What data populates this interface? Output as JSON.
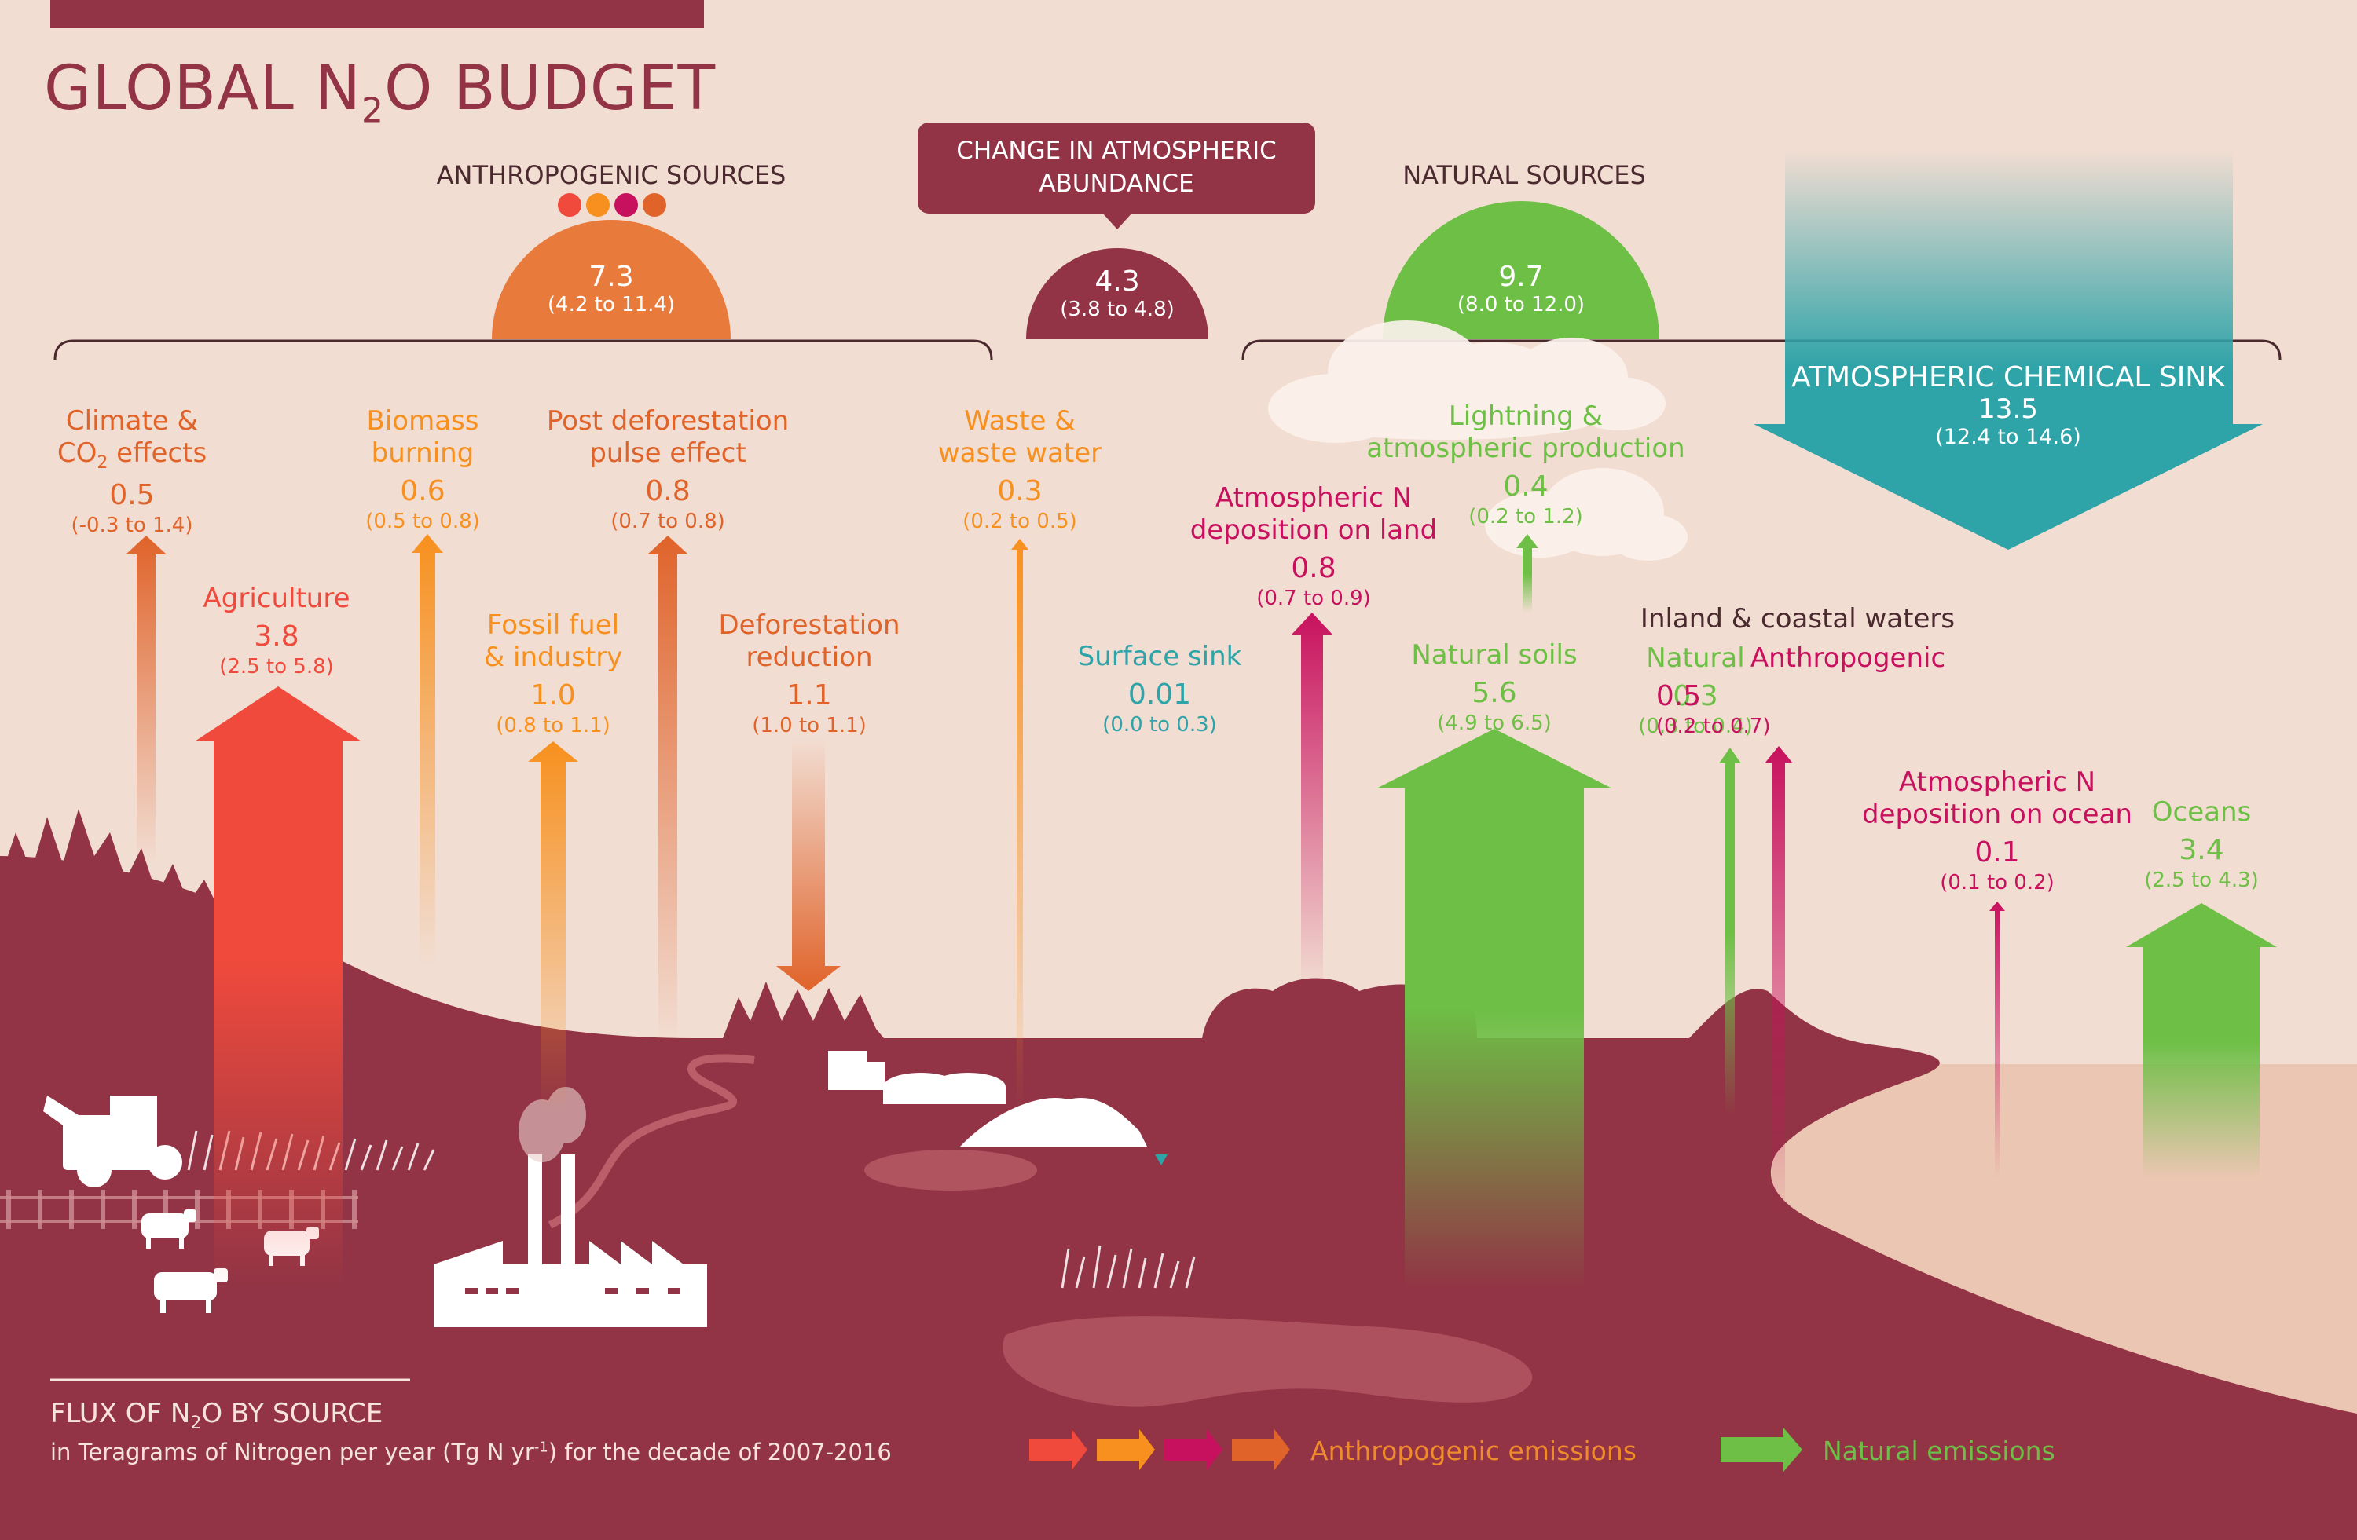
{
  "title": {
    "pre": "GLOBAL N",
    "sub": "2",
    "post": "O BUDGET"
  },
  "anthropogenic_header": "ANTHROPOGENIC SOURCES",
  "natural_header": "NATURAL SOURCES",
  "change_box": {
    "line1": "CHANGE IN ATMOSPHERIC",
    "line2": "ABUNDANCE"
  },
  "totals": {
    "anthropogenic": {
      "value": "7.3",
      "range": "(4.2 to 11.4)"
    },
    "change": {
      "value": "4.3",
      "range": "(3.8 to 4.8)"
    },
    "natural": {
      "value": "9.7",
      "range": "(8.0 to 12.0)"
    }
  },
  "sink": {
    "name": "ATMOSPHERIC CHEMICAL SINK",
    "value": "13.5",
    "range": "(12.4 to 14.6)"
  },
  "fluxes": {
    "climate": {
      "line1": "Climate &",
      "line2_pre": "CO",
      "line2_sub": "2",
      "line2_post": " effects",
      "value": "0.5",
      "range": "(-0.3 to 1.4)"
    },
    "agriculture": {
      "name": "Agriculture",
      "value": "3.8",
      "range": "(2.5 to 5.8)"
    },
    "biomass": {
      "line1": "Biomass",
      "line2": "burning",
      "value": "0.6",
      "range": "(0.5 to 0.8)"
    },
    "fossil": {
      "line1": "Fossil fuel",
      "line2": "& industry",
      "value": "1.0",
      "range": "(0.8 to 1.1)"
    },
    "post_deforestation": {
      "line1": "Post deforestation",
      "line2": "pulse effect",
      "value": "0.8",
      "range": "(0.7 to 0.8)"
    },
    "deforestation_reduction": {
      "line1": "Deforestation",
      "line2": "reduction",
      "value": "1.1",
      "range": "(1.0 to 1.1)"
    },
    "waste": {
      "line1": "Waste &",
      "line2": "waste water",
      "value": "0.3",
      "range": "(0.2 to 0.5)"
    },
    "surface_sink": {
      "name": "Surface sink",
      "value": "0.01",
      "range": "(0.0 to 0.3)"
    },
    "deposition_land": {
      "line1": "Atmospheric N",
      "line2": "deposition on land",
      "value": "0.8",
      "range": "(0.7 to 0.9)"
    },
    "lightning": {
      "line1": "Lightning &",
      "line2": "atmospheric production",
      "value": "0.4",
      "range": "(0.2 to 1.2)"
    },
    "natural_soils": {
      "name": "Natural soils",
      "value": "5.6",
      "range": "(4.9 to 6.5)"
    },
    "inland_header": "Inland & coastal waters",
    "inland_natural": {
      "name": "Natural",
      "value": "0.3",
      "range": "(0.3 to 0.4)"
    },
    "inland_anthro": {
      "name": "Anthropogenic",
      "value": "0.5",
      "range": "(0.2 to 0.7)"
    },
    "deposition_ocean": {
      "line1": "Atmospheric N",
      "line2": "deposition on ocean",
      "value": "0.1",
      "range": "(0.1 to 0.2)"
    },
    "oceans": {
      "name": "Oceans",
      "value": "3.4",
      "range": "(2.5 to 4.3)"
    }
  },
  "footer": {
    "title_pre": "FLUX OF N",
    "title_sub": "2",
    "title_post": "O BY SOURCE",
    "subtitle_pre": "in Teragrams of Nitrogen per year (Tg N yr",
    "subtitle_sup": "-1",
    "subtitle_post": ") for the decade of 2007-2016"
  },
  "legend": {
    "anthropogenic": "Anthropogenic emissions",
    "natural": "Natural emissions"
  },
  "colors": {
    "background": "#f2ddd2",
    "land": "#923445",
    "sea": "#ebc6b2",
    "red": "#f04a3c",
    "orange": "#f7901e",
    "magenta": "#c8115e",
    "dark_orange": "#e0632a",
    "green": "#6dbf45",
    "teal": "#2ea3a8"
  }
}
